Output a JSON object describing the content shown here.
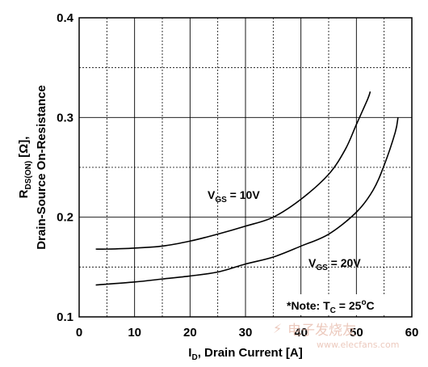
{
  "chart_data": {
    "type": "line",
    "xlabel_main": "I",
    "xlabel_sub": "D",
    "xlabel_rest": ", Drain Current [A]",
    "ylabel_line1_main": "R",
    "ylabel_line1_sub": "DS(ON)",
    "ylabel_line1_rest": " [Ω],",
    "ylabel_line2": "Drain-Source On-Resistance",
    "xlim": [
      0,
      60
    ],
    "ylim": [
      0.1,
      0.4
    ],
    "x_ticks": [
      "0",
      "10",
      "20",
      "30",
      "40",
      "50",
      "60"
    ],
    "y_ticks": [
      "0.1",
      "0.2",
      "0.3",
      "0.4"
    ],
    "grid": true,
    "series": [
      {
        "name": "V_GS = 10V",
        "label_main": "V",
        "label_sub": "GS",
        "label_rest": " = 10V",
        "x": [
          3,
          5,
          10,
          15,
          20,
          25,
          30,
          35,
          40,
          45,
          48,
          50,
          52,
          52.5
        ],
        "y": [
          0.168,
          0.168,
          0.169,
          0.171,
          0.176,
          0.183,
          0.191,
          0.2,
          0.218,
          0.243,
          0.268,
          0.293,
          0.318,
          0.326
        ]
      },
      {
        "name": "V_GS = 20V",
        "label_main": "V",
        "label_sub": "GS",
        "label_rest": " = 20V",
        "x": [
          3,
          10,
          15,
          20,
          25,
          30,
          35,
          40,
          45,
          50,
          53,
          55,
          57,
          57.5
        ],
        "y": [
          0.132,
          0.135,
          0.138,
          0.141,
          0.145,
          0.153,
          0.16,
          0.171,
          0.183,
          0.205,
          0.227,
          0.252,
          0.285,
          0.3
        ]
      }
    ],
    "annotation": {
      "prefix": "*Note: T",
      "sub": "C",
      "mid": " = 25",
      "sup": "o",
      "suffix": "C"
    }
  },
  "watermark": {
    "line1": "电子发烧友",
    "line2": "www.elecfans.com"
  },
  "colors": {
    "line": "#000000",
    "grid": "#000000"
  }
}
